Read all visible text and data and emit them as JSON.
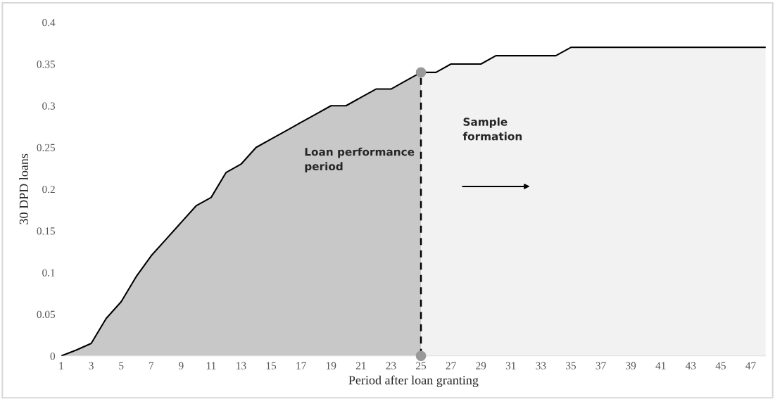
{
  "chart_data": {
    "type": "area",
    "xlabel": "Period after loan granting",
    "ylabel": "30 DPD loans",
    "series": [
      {
        "color": "#c8c8c8",
        "x": [
          1,
          2,
          3,
          4,
          5,
          6,
          7,
          8,
          9,
          10,
          11,
          12,
          13,
          14,
          15,
          16,
          17,
          18,
          19,
          20,
          21,
          22,
          23,
          24,
          25
        ],
        "values": [
          0,
          0.007,
          0.015,
          0.045,
          0.065,
          0.095,
          0.12,
          0.14,
          0.16,
          0.18,
          0.19,
          0.22,
          0.23,
          0.25,
          0.26,
          0.27,
          0.28,
          0.29,
          0.3,
          0.3,
          0.31,
          0.32,
          0.32,
          0.33,
          0.34
        ]
      },
      {
        "color": "#f2f2f2",
        "x": [
          25,
          26,
          27,
          28,
          29,
          30,
          31,
          32,
          33,
          34,
          35,
          36,
          37,
          38,
          39,
          40,
          41,
          42,
          43,
          44,
          45,
          46,
          47,
          48
        ],
        "values": [
          0.34,
          0.34,
          0.35,
          0.35,
          0.35,
          0.36,
          0.36,
          0.36,
          0.36,
          0.36,
          0.37,
          0.37,
          0.37,
          0.37,
          0.37,
          0.37,
          0.37,
          0.37,
          0.37,
          0.37,
          0.37,
          0.37,
          0.37,
          0.37
        ]
      },
      {
        "type": "scatter",
        "color": "#999999",
        "x": [
          25,
          25
        ],
        "values": [
          0.34,
          0
        ]
      }
    ],
    "xlim": [
      1,
      48
    ],
    "xticks": [
      1,
      3,
      5,
      7,
      9,
      11,
      13,
      15,
      17,
      19,
      21,
      23,
      25,
      27,
      29,
      31,
      33,
      35,
      37,
      39,
      41,
      43,
      45,
      47
    ],
    "ylim": [
      0,
      0.4
    ],
    "yticks": [
      0,
      0.05,
      0.1,
      0.15,
      0.2,
      0.25,
      0.3,
      0.35,
      0.4
    ],
    "ref_lines": [
      {
        "axis": "x",
        "value": 25,
        "color": "#000000",
        "line_style": "dashed"
      }
    ],
    "annotations": [
      "Loan performance period",
      "Sample formation"
    ],
    "grid": false,
    "legend": false
  }
}
